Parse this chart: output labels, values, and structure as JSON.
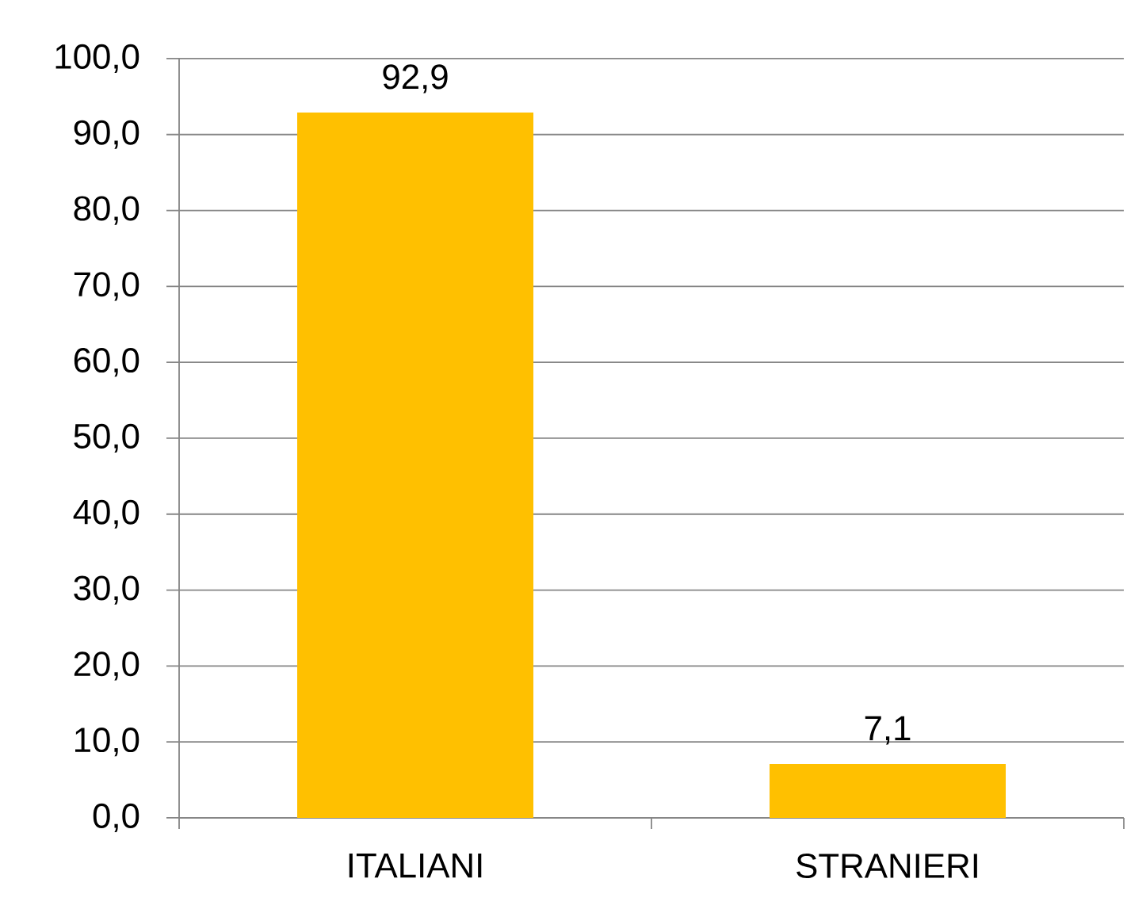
{
  "chart_data": {
    "type": "bar",
    "categories": [
      "ITALIANI",
      "STRANIERI"
    ],
    "values": [
      92.9,
      7.1
    ],
    "color": "#ffc000",
    "value_labels": [
      "92,9",
      "7,1"
    ],
    "ylim": [
      0,
      100
    ],
    "yticks": [
      {
        "value": 0,
        "label": "0,0"
      },
      {
        "value": 10,
        "label": "10,0"
      },
      {
        "value": 20,
        "label": "20,0"
      },
      {
        "value": 30,
        "label": "30,0"
      },
      {
        "value": 40,
        "label": "40,0"
      },
      {
        "value": 50,
        "label": "50,0"
      },
      {
        "value": 60,
        "label": "60,0"
      },
      {
        "value": 70,
        "label": "70,0"
      },
      {
        "value": 80,
        "label": "80,0"
      },
      {
        "value": 90,
        "label": "90,0"
      },
      {
        "value": 100,
        "label": "100,0"
      }
    ],
    "grid": "y"
  }
}
